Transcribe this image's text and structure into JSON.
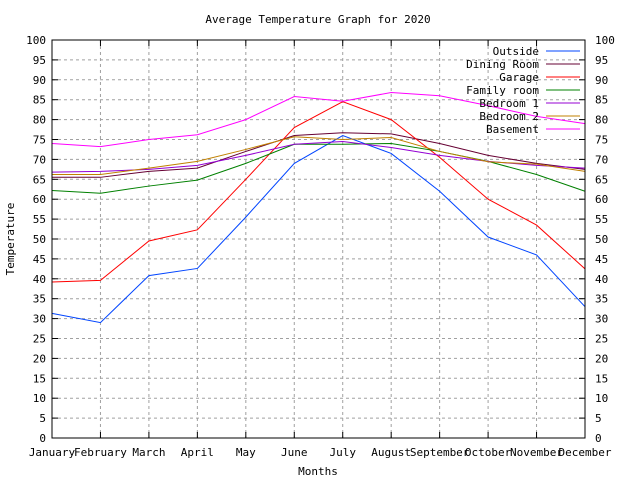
{
  "chart_data": {
    "type": "line",
    "title": "Average Temperature Graph for 2020",
    "xlabel": "Months",
    "ylabel": "Temperature",
    "ylim": [
      0,
      100
    ],
    "ytick_step": 5,
    "grid": true,
    "legend_placement": "top-right",
    "categories": [
      "January",
      "February",
      "March",
      "April",
      "May",
      "June",
      "July",
      "August",
      "September",
      "October",
      "November",
      "December"
    ],
    "series": [
      {
        "name": "Outside",
        "color": "#0044ff",
        "values": [
          31.3,
          29,
          40.8,
          42.6,
          55.5,
          69,
          76,
          71.5,
          62,
          50.5,
          46,
          33
        ]
      },
      {
        "name": "Dining Room",
        "color": "#660033",
        "values": [
          65.5,
          65.5,
          67,
          67.8,
          72,
          76,
          76.7,
          76.4,
          74,
          71,
          69,
          67.5
        ]
      },
      {
        "name": "Garage",
        "color": "#ff0000",
        "values": [
          39.2,
          39.6,
          49.5,
          52.3,
          65,
          78,
          84.5,
          80,
          70.5,
          60,
          53.5,
          42.5
        ]
      },
      {
        "name": "Family room",
        "color": "#008000",
        "values": [
          62.2,
          61.5,
          63.3,
          64.8,
          69,
          73.8,
          73.8,
          74,
          72,
          69.5,
          66.2,
          62
        ]
      },
      {
        "name": "Bedroom 1",
        "color": "#9400d3",
        "values": [
          66.8,
          67,
          67.5,
          68.5,
          71,
          73.8,
          74.5,
          73,
          71,
          69.5,
          68.5,
          67.8
        ]
      },
      {
        "name": "Bedroom 2",
        "color": "#c08000",
        "values": [
          66.2,
          66.2,
          67.8,
          69.5,
          72.5,
          75.7,
          75,
          75.5,
          72,
          69.4,
          68.8,
          67
        ]
      },
      {
        "name": "Basement",
        "color": "#ff00ff",
        "values": [
          74,
          73.2,
          75,
          76.2,
          80,
          85.8,
          84.6,
          86.8,
          86,
          83.5,
          80.8,
          79
        ]
      }
    ]
  }
}
